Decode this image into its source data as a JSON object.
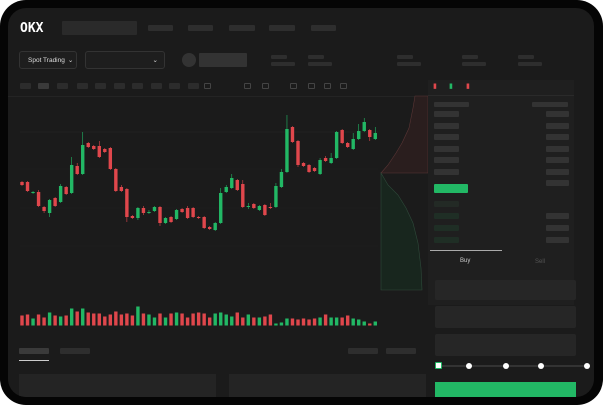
{
  "header": {
    "logo": "OKX"
  },
  "toolbar": {
    "market_select": "Spot Trading",
    "market_chevron": "⌄",
    "pair_chevron": "⌄"
  },
  "orderbook": {
    "icons": [
      "orderbook-both-icon",
      "orderbook-buy-icon",
      "orderbook-sell-icon"
    ]
  },
  "trade": {
    "buy_tab": "Buy",
    "sell_tab": "Sell"
  },
  "colors": {
    "up": "#22b865",
    "down": "#e0474c",
    "bg": "#1b1b1b",
    "accent": "#22b865"
  },
  "chart_data": {
    "type": "candlestick",
    "candles": [
      [
        118,
        115,
        119,
        114
      ],
      [
        118,
        109,
        119,
        108
      ],
      [
        107,
        108,
        109,
        106
      ],
      [
        108,
        94,
        110,
        93
      ],
      [
        93,
        89,
        94,
        87
      ],
      [
        87,
        100,
        101,
        83
      ],
      [
        102,
        94,
        103,
        93
      ],
      [
        98,
        114,
        116,
        97
      ],
      [
        113,
        106,
        114,
        105
      ],
      [
        107,
        135,
        143,
        106
      ],
      [
        134,
        126,
        137,
        125
      ],
      [
        126,
        155,
        168,
        125
      ],
      [
        157,
        153,
        158,
        152
      ],
      [
        154,
        151,
        155,
        150
      ],
      [
        154,
        143,
        159,
        142
      ],
      [
        151,
        148,
        152,
        147
      ],
      [
        152,
        131,
        153,
        130
      ],
      [
        131,
        109,
        132,
        108
      ],
      [
        113,
        109,
        115,
        108
      ],
      [
        111,
        83,
        112,
        78
      ],
      [
        84,
        82,
        85,
        81
      ],
      [
        82,
        92,
        93,
        80
      ],
      [
        92,
        87,
        94,
        85
      ],
      [
        87,
        88,
        90,
        86
      ],
      [
        89,
        93,
        94,
        88
      ],
      [
        93,
        77,
        94,
        74
      ],
      [
        77,
        82,
        83,
        76
      ],
      [
        83,
        78,
        84,
        77
      ],
      [
        81,
        90,
        91,
        80
      ],
      [
        91,
        88,
        92,
        87
      ],
      [
        92,
        82,
        94,
        81
      ],
      [
        92,
        83,
        93,
        82
      ],
      [
        83,
        82,
        84,
        81
      ],
      [
        83,
        72,
        84,
        71
      ],
      [
        73,
        71,
        74,
        70
      ],
      [
        70,
        77,
        78,
        69
      ],
      [
        77,
        107,
        112,
        76
      ],
      [
        108,
        113,
        115,
        107
      ],
      [
        112,
        122,
        126,
        111
      ],
      [
        120,
        110,
        121,
        109
      ],
      [
        116,
        93,
        120,
        92
      ],
      [
        93,
        94,
        97,
        91
      ],
      [
        96,
        92,
        97,
        91
      ],
      [
        90,
        94,
        95,
        89
      ],
      [
        95,
        85,
        96,
        84
      ],
      [
        93,
        92,
        97,
        91
      ],
      [
        93,
        114,
        117,
        92
      ],
      [
        113,
        128,
        131,
        112
      ],
      [
        128,
        171,
        185,
        127
      ],
      [
        173,
        158,
        174,
        157
      ],
      [
        159,
        135,
        160,
        133
      ],
      [
        137,
        134,
        138,
        133
      ],
      [
        135,
        128,
        136,
        127
      ],
      [
        132,
        129,
        133,
        128
      ],
      [
        126,
        140,
        142,
        125
      ],
      [
        142,
        139,
        144,
        138
      ],
      [
        137,
        142,
        147,
        136
      ],
      [
        142,
        168,
        169,
        141
      ],
      [
        170,
        157,
        171,
        156
      ],
      [
        157,
        153,
        158,
        152
      ],
      [
        151,
        161,
        167,
        150
      ],
      [
        161,
        169,
        176,
        160
      ],
      [
        169,
        178,
        182,
        168
      ],
      [
        170,
        163,
        171,
        159
      ],
      [
        161,
        167,
        173,
        160
      ]
    ],
    "volume": [
      10,
      11,
      7,
      11,
      8,
      13,
      10,
      9,
      10,
      17,
      14,
      17,
      13,
      12,
      12,
      9,
      11,
      14,
      11,
      12,
      10,
      19,
      12,
      11,
      8,
      12,
      8,
      12,
      13,
      12,
      8,
      12,
      13,
      12,
      8,
      12,
      13,
      11,
      9,
      13,
      8,
      11,
      8,
      8,
      9,
      11,
      2,
      3,
      7,
      7,
      6,
      7,
      6,
      7,
      8,
      11,
      8,
      8,
      8,
      10,
      7,
      6,
      4,
      2,
      4
    ]
  }
}
